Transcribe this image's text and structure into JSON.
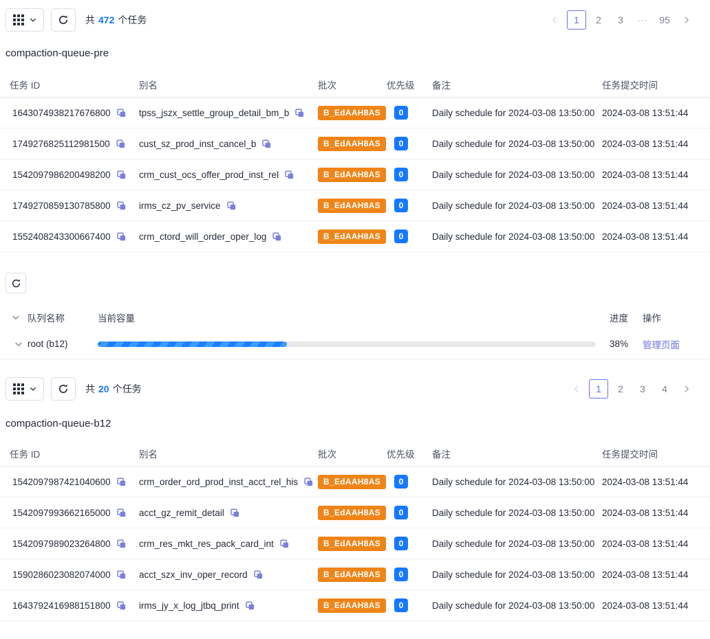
{
  "colors": {
    "accent_purple": "#6a73de",
    "primary_blue": "#1678ff",
    "badge_orange": "#ef8519",
    "progress_blue": "#1a80ff",
    "track_gray": "#e7e7e7"
  },
  "top_toolbar": {
    "total_prefix": "共",
    "total_count": "472",
    "total_suffix": "个任务",
    "pager": {
      "pages": [
        "1",
        "2",
        "3",
        "···",
        "95"
      ],
      "active": "1"
    }
  },
  "section_pre": {
    "title": "compaction-queue-pre",
    "headers": {
      "id": "任务 ID",
      "alias": "别名",
      "batch": "批次",
      "priority": "优先级",
      "remark": "备注",
      "submit_time": "任务提交时间"
    },
    "rows": [
      {
        "id": "1643074938217676800",
        "alias": "tpss_jszx_settle_group_detail_bm_b",
        "batch": "B_EdAAH8AS",
        "priority": "0",
        "remark": "Daily schedule for 2024-03-08 13:50:00",
        "submit_time": "2024-03-08 13:51:44"
      },
      {
        "id": "1749276825112981500",
        "alias": "cust_sz_prod_inst_cancel_b",
        "batch": "B_EdAAH8AS",
        "priority": "0",
        "remark": "Daily schedule for 2024-03-08 13:50:00",
        "submit_time": "2024-03-08 13:51:44"
      },
      {
        "id": "1542097986200498200",
        "alias": "crm_cust_ocs_offer_prod_inst_rel",
        "batch": "B_EdAAH8AS",
        "priority": "0",
        "remark": "Daily schedule for 2024-03-08 13:50:00",
        "submit_time": "2024-03-08 13:51:44"
      },
      {
        "id": "1749270859130785800",
        "alias": "irms_cz_pv_service",
        "batch": "B_EdAAH8AS",
        "priority": "0",
        "remark": "Daily schedule for 2024-03-08 13:50:00",
        "submit_time": "2024-03-08 13:51:44"
      },
      {
        "id": "1552408243300667400",
        "alias": "crm_ctord_will_order_oper_log",
        "batch": "B_EdAAH8AS",
        "priority": "0",
        "remark": "Daily schedule for 2024-03-08 13:50:00",
        "submit_time": "2024-03-08 13:51:44"
      }
    ]
  },
  "queue_panel": {
    "headers": {
      "name": "队列名称",
      "capacity": "当前容量",
      "progress": "进度",
      "action": "操作"
    },
    "row": {
      "name": "root (b12)",
      "progress_pct": "38%",
      "progress_value": 38,
      "action": "管理页面"
    }
  },
  "bottom_toolbar": {
    "total_prefix": "共",
    "total_count": "20",
    "total_suffix": "个任务",
    "pager": {
      "pages": [
        "1",
        "2",
        "3",
        "4"
      ],
      "active": "1"
    }
  },
  "section_b12": {
    "title": "compaction-queue-b12",
    "headers": {
      "id": "任务 ID",
      "alias": "别名",
      "batch": "批次",
      "priority": "优先级",
      "remark": "备注",
      "submit_time": "任务提交时间"
    },
    "rows": [
      {
        "id": "1542097987421040600",
        "alias": "crm_order_ord_prod_inst_acct_rel_his",
        "batch": "B_EdAAH8AS",
        "priority": "0",
        "remark": "Daily schedule for 2024-03-08 13:50:00",
        "submit_time": "2024-03-08 13:51:44"
      },
      {
        "id": "1542097993662165000",
        "alias": "acct_gz_remit_detail",
        "batch": "B_EdAAH8AS",
        "priority": "0",
        "remark": "Daily schedule for 2024-03-08 13:50:00",
        "submit_time": "2024-03-08 13:51:44"
      },
      {
        "id": "1542097989023264800",
        "alias": "crm_res_mkt_res_pack_card_int",
        "batch": "B_EdAAH8AS",
        "priority": "0",
        "remark": "Daily schedule for 2024-03-08 13:50:00",
        "submit_time": "2024-03-08 13:51:44"
      },
      {
        "id": "1590286023082074000",
        "alias": "acct_szx_inv_oper_record",
        "batch": "B_EdAAH8AS",
        "priority": "0",
        "remark": "Daily schedule for 2024-03-08 13:50:00",
        "submit_time": "2024-03-08 13:51:44"
      },
      {
        "id": "1643792416988151800",
        "alias": "irms_jy_x_log_jtbq_print",
        "batch": "B_EdAAH8AS",
        "priority": "0",
        "remark": "Daily schedule for 2024-03-08 13:50:00",
        "submit_time": "2024-03-08 13:51:44"
      }
    ]
  }
}
